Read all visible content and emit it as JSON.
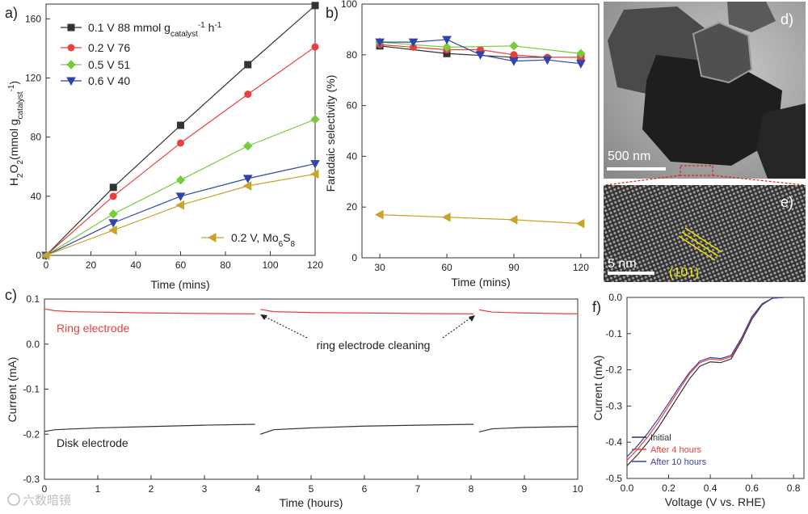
{
  "watermark": "六数暗镜",
  "colors": {
    "black": "#333333",
    "red": "#e8403f",
    "green": "#76cc3c",
    "blue": "#3244a8",
    "gold": "#c9a227",
    "ring": "#e8403f",
    "disk": "#333333",
    "after4": "#e8403f",
    "after10": "#3c3fa8",
    "tem_label": "#f2e200"
  },
  "chart_data": [
    {
      "id": "a",
      "type": "line",
      "panel_label": "a)",
      "xlabel": "Time (mins)",
      "ylabel": "H2O2(mmol gcatalyst-1)",
      "xlim": [
        0,
        120
      ],
      "ylim": [
        0,
        170
      ],
      "xticks": [
        0,
        20,
        40,
        60,
        80,
        100,
        120
      ],
      "yticks": [
        0,
        40,
        80,
        120,
        160
      ],
      "series": [
        {
          "name": "0.1 V 88 mmol gcatalyst-1 h-1",
          "legend_main": "0.1 V 88 mmol g",
          "legend_sub": "catalyst",
          "legend_sup": "-1",
          "legend_tail": " h",
          "legend_tail_sup": "-1",
          "color": "#333333",
          "marker": "square",
          "x": [
            0,
            30,
            60,
            90,
            120
          ],
          "y": [
            0,
            46,
            88,
            129,
            169
          ]
        },
        {
          "name": "0.2 V 76",
          "legend_main": "0.2 V 76",
          "color": "#e8403f",
          "marker": "circle",
          "x": [
            0,
            30,
            60,
            90,
            120
          ],
          "y": [
            0,
            40,
            76,
            109,
            141
          ]
        },
        {
          "name": "0.5 V 51",
          "legend_main": "0.5 V 51",
          "color": "#76cc3c",
          "marker": "diamond",
          "x": [
            0,
            30,
            60,
            90,
            120
          ],
          "y": [
            0,
            28,
            51,
            74,
            92
          ]
        },
        {
          "name": "0.6 V 40",
          "legend_main": "0.6 V 40",
          "color": "#3244a8",
          "marker": "tri-down",
          "x": [
            0,
            30,
            60,
            90,
            120
          ],
          "y": [
            0,
            22,
            40,
            52,
            62
          ]
        },
        {
          "name": "0.2 V, Mo6S8",
          "legend_main": "0.2 V, Mo",
          "legend_sub": "6",
          "legend_tail": "S",
          "legend_tail_sub": "8",
          "color": "#c9a227",
          "marker": "tri-left",
          "x": [
            0,
            30,
            60,
            90,
            120
          ],
          "y": [
            0,
            17,
            34,
            47,
            55
          ]
        }
      ]
    },
    {
      "id": "b",
      "type": "line",
      "panel_label": "b)",
      "xlabel": "Time (mins)",
      "ylabel": "Faradaic selectivity (%)",
      "xlim": [
        22,
        128
      ],
      "ylim": [
        0,
        100
      ],
      "xticks": [
        30,
        60,
        90,
        120
      ],
      "yticks": [
        0,
        20,
        40,
        60,
        80,
        100
      ],
      "series": [
        {
          "name": "0.1 V",
          "color": "#333333",
          "marker": "square",
          "x": [
            30,
            60,
            90,
            120
          ],
          "y": [
            83.5,
            80.5,
            79,
            79
          ]
        },
        {
          "name": "0.2 V",
          "color": "#e8403f",
          "marker": "circle",
          "x": [
            30,
            45,
            60,
            75,
            90,
            105,
            120
          ],
          "y": [
            84,
            83,
            82,
            82,
            80,
            79,
            79
          ]
        },
        {
          "name": "0.5 V",
          "color": "#76cc3c",
          "marker": "diamond",
          "x": [
            30,
            60,
            90,
            120
          ],
          "y": [
            85,
            83,
            83.5,
            80.5
          ]
        },
        {
          "name": "0.6 V",
          "color": "#3244a8",
          "marker": "tri-down",
          "x": [
            30,
            45,
            60,
            75,
            90,
            105,
            120
          ],
          "y": [
            85,
            85,
            86,
            80,
            77.5,
            78,
            76.5
          ]
        },
        {
          "name": "0.2 V, Mo6S8",
          "color": "#c9a227",
          "marker": "tri-left",
          "x": [
            30,
            60,
            90,
            120
          ],
          "y": [
            17,
            16,
            15,
            13.5
          ]
        }
      ]
    },
    {
      "id": "c",
      "type": "line",
      "panel_label": "c)",
      "xlabel": "Time (hours)",
      "ylabel": "Current (mA)",
      "xlim": [
        0,
        10
      ],
      "ylim": [
        -0.3,
        0.1
      ],
      "xticks": [
        0,
        1,
        2,
        3,
        4,
        5,
        6,
        7,
        8,
        9,
        10
      ],
      "yticks": [
        -0.3,
        -0.2,
        -0.1,
        0.0,
        0.1
      ],
      "ytick_labels": [
        "-0.3",
        "-0.2",
        "-0.1",
        "0.0",
        "0.1"
      ],
      "series": [
        {
          "name": "Ring electrode",
          "color": "#e8403f",
          "segments": [
            {
              "x": [
                0,
                0.2,
                0.5,
                1,
                2,
                3,
                3.95
              ],
              "y": [
                0.078,
                0.074,
                0.072,
                0.071,
                0.069,
                0.068,
                0.067
              ]
            },
            {
              "x": [
                4.05,
                4.3,
                5,
                6,
                7,
                8.05
              ],
              "y": [
                0.077,
                0.072,
                0.07,
                0.069,
                0.068,
                0.067
              ]
            },
            {
              "x": [
                8.15,
                8.4,
                9,
                10
              ],
              "y": [
                0.076,
                0.071,
                0.069,
                0.067
              ]
            }
          ]
        },
        {
          "name": "Disk electrode",
          "color": "#333333",
          "segments": [
            {
              "x": [
                0,
                0.2,
                0.6,
                1,
                2,
                3,
                3.95
              ],
              "y": [
                -0.194,
                -0.19,
                -0.188,
                -0.186,
                -0.183,
                -0.18,
                -0.178
              ]
            },
            {
              "x": [
                4.05,
                4.3,
                5,
                6,
                7,
                8.05
              ],
              "y": [
                -0.2,
                -0.19,
                -0.186,
                -0.182,
                -0.18,
                -0.178
              ]
            },
            {
              "x": [
                8.15,
                8.4,
                9,
                10
              ],
              "y": [
                -0.195,
                -0.188,
                -0.185,
                -0.183
              ]
            }
          ]
        }
      ],
      "annotations": {
        "ring": "Ring electrode",
        "disk": "Disk electrode",
        "cleaning": "ring electrode cleaning"
      }
    },
    {
      "id": "f",
      "type": "line",
      "panel_label": "f)",
      "xlabel": "Voltage (V vs. RHE)",
      "ylabel": "Current (mA)",
      "xlim": [
        0,
        0.85
      ],
      "ylim": [
        -0.5,
        0.0
      ],
      "xticks": [
        0.0,
        0.2,
        0.4,
        0.6,
        0.8
      ],
      "xtick_labels": [
        "0.0",
        "0.2",
        "0.4",
        "0.6",
        "0.8"
      ],
      "yticks": [
        -0.5,
        -0.4,
        -0.3,
        -0.2,
        -0.1,
        0.0
      ],
      "ytick_labels": [
        "-0.5",
        "-0.4",
        "-0.3",
        "-0.2",
        "-0.1",
        "0.0"
      ],
      "series": [
        {
          "name": "Initial",
          "color": "#333333",
          "x": [
            0,
            0.05,
            0.1,
            0.15,
            0.2,
            0.25,
            0.3,
            0.35,
            0.4,
            0.45,
            0.5,
            0.55,
            0.6,
            0.65,
            0.7,
            0.75
          ],
          "y": [
            -0.465,
            -0.435,
            -0.4,
            -0.36,
            -0.315,
            -0.27,
            -0.225,
            -0.19,
            -0.178,
            -0.18,
            -0.17,
            -0.12,
            -0.06,
            -0.02,
            -0.002,
            0.0
          ]
        },
        {
          "name": "After 4 hours",
          "color": "#e8403f",
          "x": [
            0,
            0.05,
            0.1,
            0.15,
            0.2,
            0.25,
            0.3,
            0.35,
            0.4,
            0.45,
            0.5,
            0.55,
            0.6,
            0.65,
            0.7,
            0.75
          ],
          "y": [
            -0.45,
            -0.42,
            -0.385,
            -0.345,
            -0.3,
            -0.255,
            -0.212,
            -0.18,
            -0.17,
            -0.173,
            -0.164,
            -0.115,
            -0.055,
            -0.018,
            -0.002,
            0.0
          ]
        },
        {
          "name": "After 10 hours",
          "color": "#3c3fa8",
          "x": [
            0,
            0.05,
            0.1,
            0.15,
            0.2,
            0.25,
            0.3,
            0.35,
            0.4,
            0.45,
            0.5,
            0.55,
            0.6,
            0.65,
            0.7,
            0.75
          ],
          "y": [
            -0.44,
            -0.41,
            -0.375,
            -0.335,
            -0.292,
            -0.248,
            -0.207,
            -0.176,
            -0.166,
            -0.169,
            -0.16,
            -0.112,
            -0.053,
            -0.017,
            -0.002,
            0.0
          ]
        }
      ]
    }
  ],
  "images": {
    "d": {
      "panel_label": "d)",
      "scalebar": "500 nm"
    },
    "e": {
      "panel_label": "e)",
      "scalebar": "5 nm",
      "plane": "(101)"
    }
  }
}
